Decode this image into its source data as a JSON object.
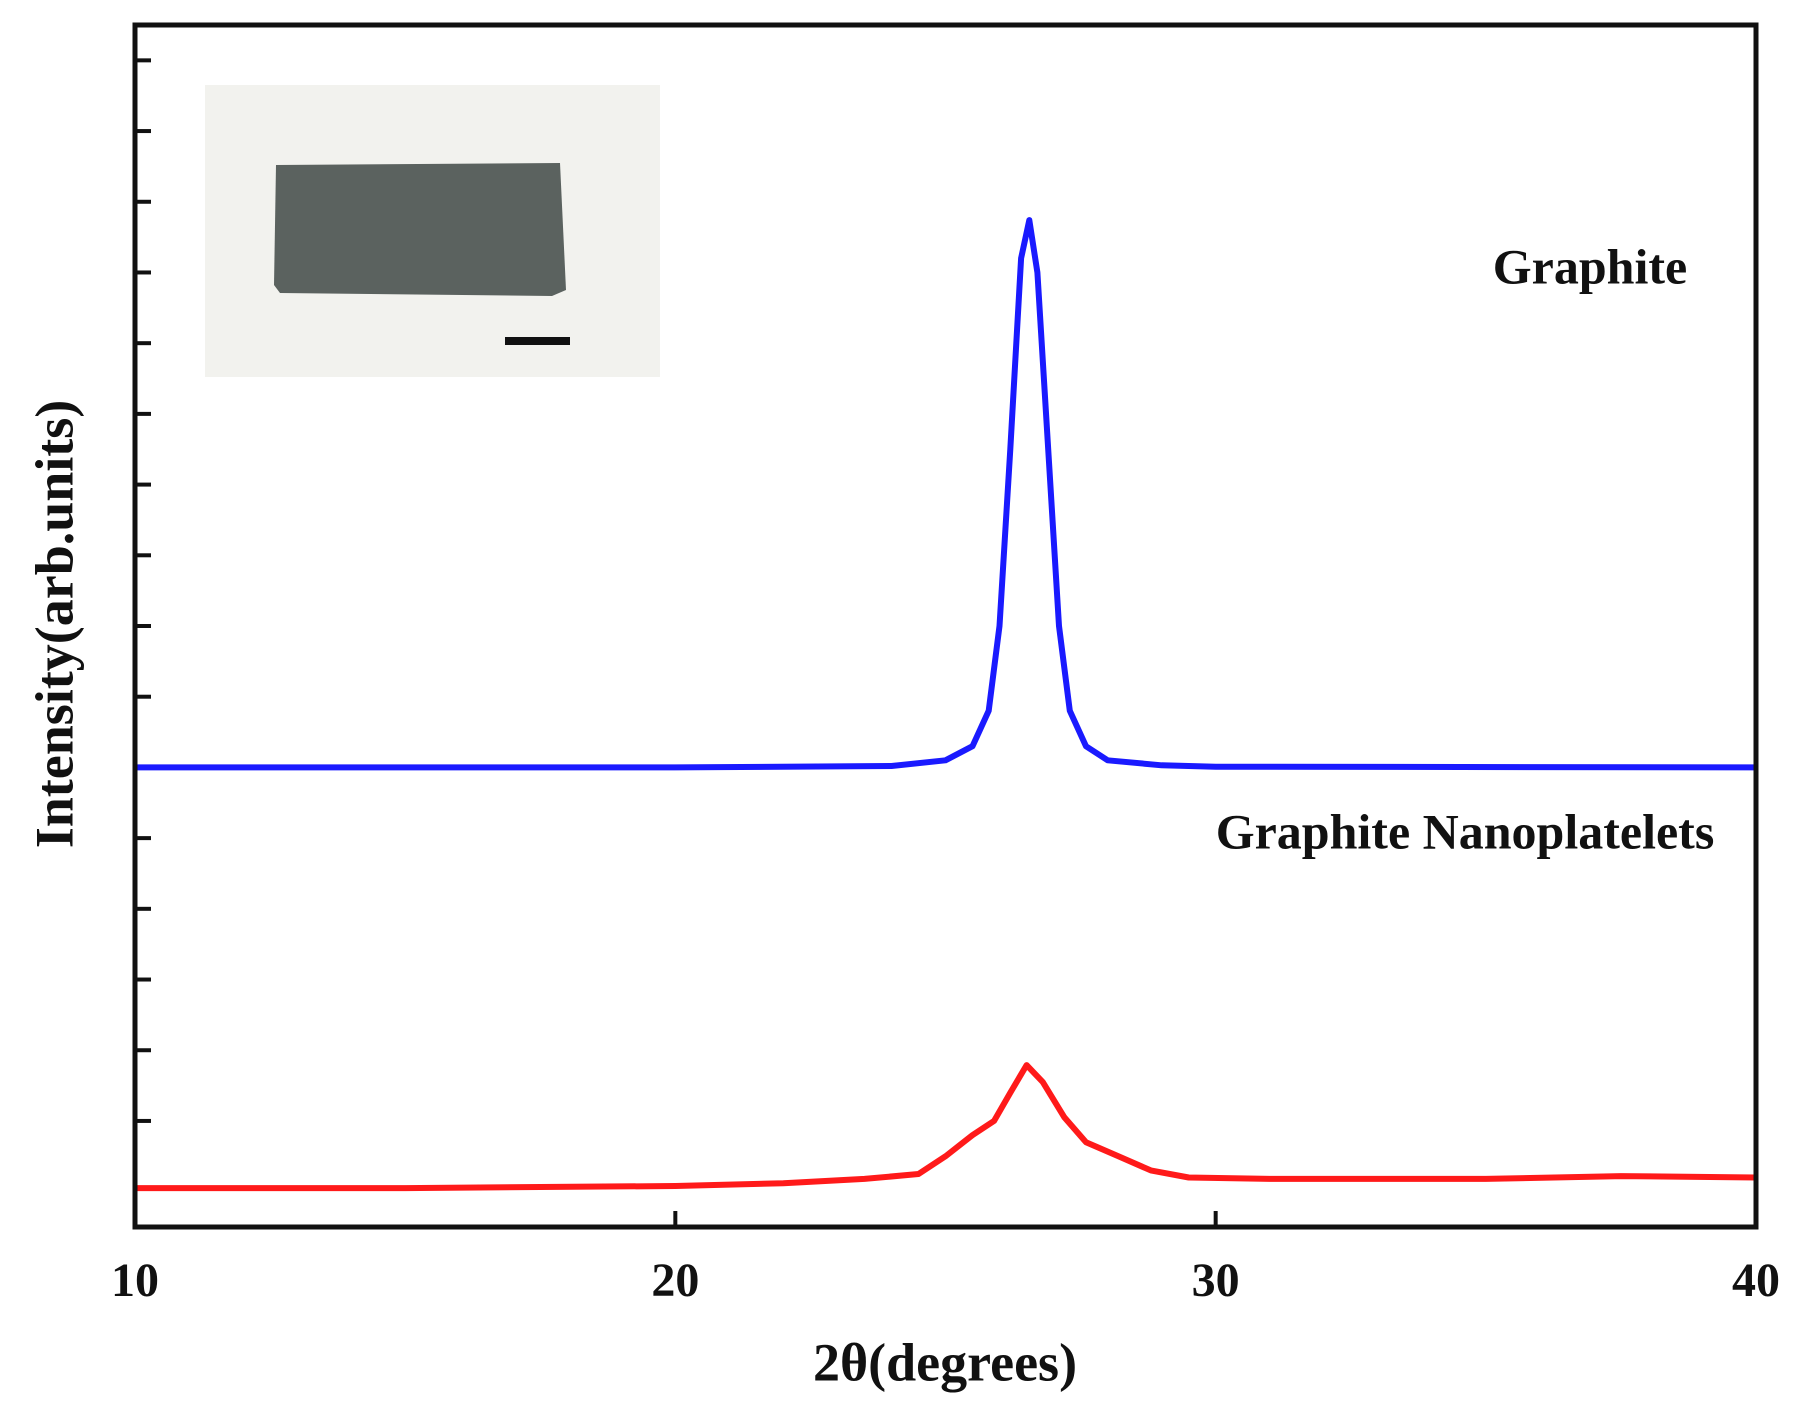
{
  "chart_data": {
    "type": "line",
    "xlabel": "2θ(degrees)",
    "ylabel": "Intensity(arb.units)",
    "xlim": [
      10,
      40
    ],
    "xticks": [
      10,
      20,
      30,
      40
    ],
    "ylim": [
      -1.5,
      15.5
    ],
    "yticks": [
      0,
      1,
      2,
      3,
      4,
      5,
      6,
      7,
      8,
      9,
      10,
      11,
      12,
      13,
      14,
      15
    ],
    "annotations": [
      "Graphite",
      "Graphite Nanoplatelets"
    ],
    "series": [
      {
        "name": "Graphite",
        "color": "#1a1aff",
        "x": [
          10,
          20,
          24,
          25,
          25.5,
          25.8,
          26.0,
          26.2,
          26.4,
          26.55,
          26.7,
          26.9,
          27.1,
          27.3,
          27.6,
          28,
          29,
          30,
          40
        ],
        "values": [
          5.0,
          5.0,
          5.02,
          5.1,
          5.3,
          5.8,
          7.0,
          9.5,
          12.2,
          12.74,
          12.0,
          9.5,
          7.0,
          5.8,
          5.3,
          5.1,
          5.03,
          5.01,
          5.0
        ]
      },
      {
        "name": "Graphite Nanoplatelets",
        "color": "#ff1a1a",
        "x": [
          10,
          15,
          20,
          22,
          23.5,
          24.5,
          25,
          25.5,
          25.9,
          26.2,
          26.5,
          26.8,
          27.2,
          27.6,
          28.2,
          28.8,
          29.5,
          31,
          35,
          37.5,
          40
        ],
        "values": [
          -0.95,
          -0.95,
          -0.92,
          -0.88,
          -0.82,
          -0.75,
          -0.5,
          -0.2,
          0.0,
          0.4,
          0.79,
          0.55,
          0.05,
          -0.3,
          -0.5,
          -0.7,
          -0.8,
          -0.82,
          -0.82,
          -0.78,
          -0.8
        ]
      }
    ]
  }
}
